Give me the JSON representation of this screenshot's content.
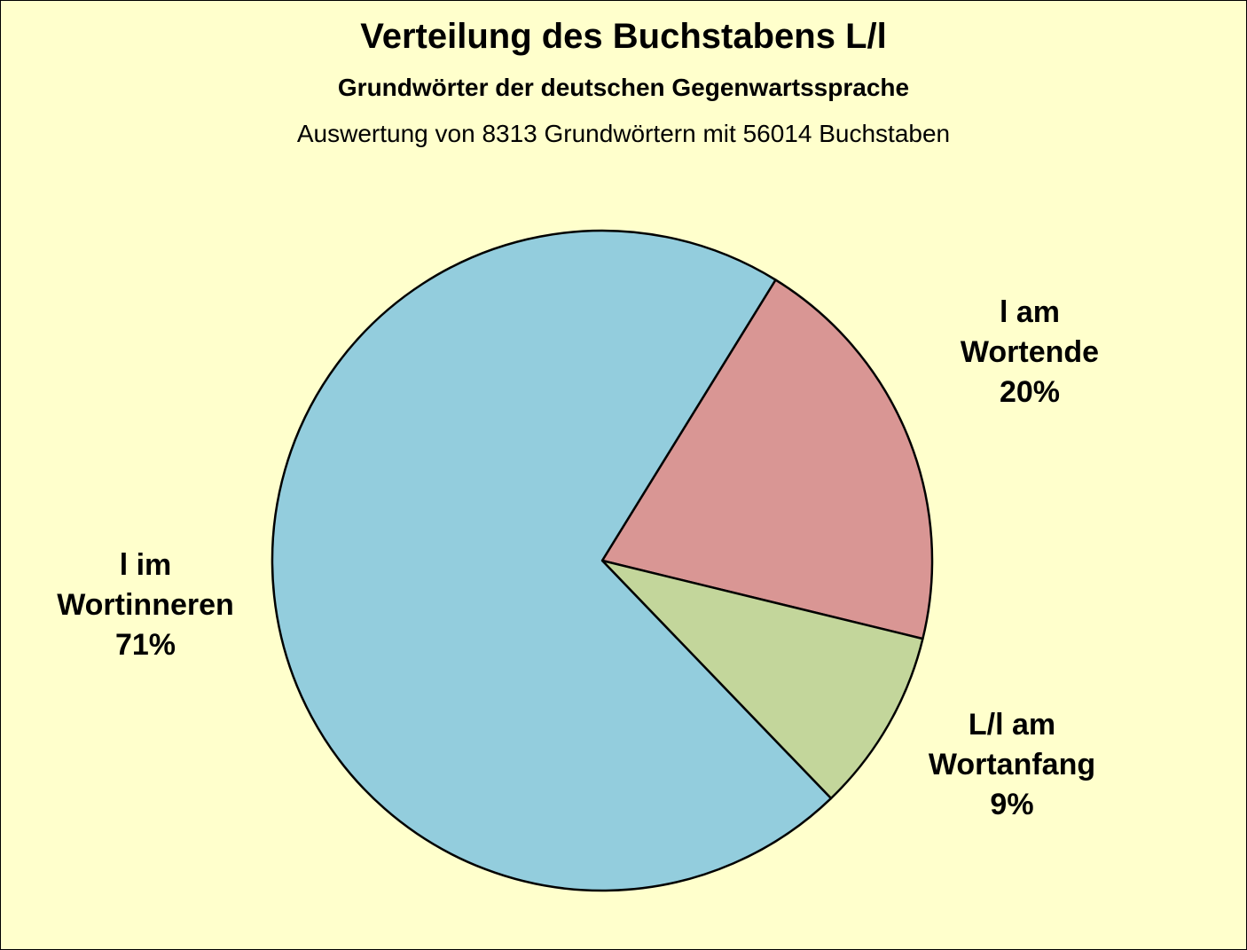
{
  "chart_data": {
    "type": "pie",
    "title": "Verteilung des Buchstabens L/l",
    "subtitle": "Grundwörter der deutschen Gegenwartssprache",
    "note": "Auswertung von 8313 Grundwörtern mit 56014 Buchstaben",
    "background": "#FFFFCC",
    "slices": [
      {
        "line1": "l am",
        "line2": "Wortende",
        "value": 20,
        "value_label": "20%",
        "color": "#D99694"
      },
      {
        "line1": "L/l am",
        "line2": "Wortanfang",
        "value": 9,
        "value_label": "9%",
        "color": "#C3D69B"
      },
      {
        "line1": "l im",
        "line2": "Wortinneren",
        "value": 71,
        "value_label": "71%",
        "color": "#93CDDD"
      }
    ]
  }
}
